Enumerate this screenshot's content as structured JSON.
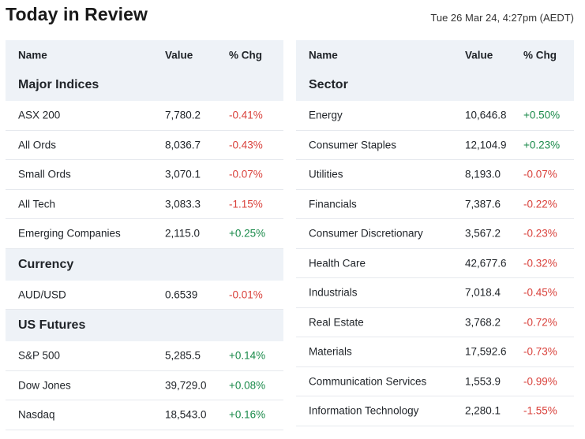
{
  "page": {
    "title": "Today in Review",
    "timestamp": "Tue 26 Mar 24, 4:27pm (AEDT)"
  },
  "colors": {
    "up": "#1a8a4a",
    "down": "#d9413b",
    "header_bg": "#eef2f7"
  },
  "left": {
    "columns": [
      "Name",
      "Value",
      "% Chg"
    ],
    "sections": [
      {
        "title": "Major Indices",
        "rows": [
          {
            "name": "ASX 200",
            "value": "7,780.2",
            "chg": "-0.41%",
            "dir": "down"
          },
          {
            "name": "All Ords",
            "value": "8,036.7",
            "chg": "-0.43%",
            "dir": "down"
          },
          {
            "name": "Small Ords",
            "value": "3,070.1",
            "chg": "-0.07%",
            "dir": "down"
          },
          {
            "name": "All Tech",
            "value": "3,083.3",
            "chg": "-1.15%",
            "dir": "down"
          },
          {
            "name": "Emerging Companies",
            "value": "2,115.0",
            "chg": "+0.25%",
            "dir": "up"
          }
        ]
      },
      {
        "title": "Currency",
        "rows": [
          {
            "name": "AUD/USD",
            "value": "0.6539",
            "chg": "-0.01%",
            "dir": "down"
          }
        ]
      },
      {
        "title": "US Futures",
        "rows": [
          {
            "name": "S&P 500",
            "value": "5,285.5",
            "chg": "+0.14%",
            "dir": "up"
          },
          {
            "name": "Dow Jones",
            "value": "39,729.0",
            "chg": "+0.08%",
            "dir": "up"
          },
          {
            "name": "Nasdaq",
            "value": "18,543.0",
            "chg": "+0.16%",
            "dir": "up"
          }
        ]
      }
    ]
  },
  "right": {
    "columns": [
      "Name",
      "Value",
      "% Chg"
    ],
    "sections": [
      {
        "title": "Sector",
        "rows": [
          {
            "name": "Energy",
            "value": "10,646.8",
            "chg": "+0.50%",
            "dir": "up"
          },
          {
            "name": "Consumer Staples",
            "value": "12,104.9",
            "chg": "+0.23%",
            "dir": "up"
          },
          {
            "name": "Utilities",
            "value": "8,193.0",
            "chg": "-0.07%",
            "dir": "down"
          },
          {
            "name": "Financials",
            "value": "7,387.6",
            "chg": "-0.22%",
            "dir": "down"
          },
          {
            "name": "Consumer Discretionary",
            "value": "3,567.2",
            "chg": "-0.23%",
            "dir": "down"
          },
          {
            "name": "Health Care",
            "value": "42,677.6",
            "chg": "-0.32%",
            "dir": "down"
          },
          {
            "name": "Industrials",
            "value": "7,018.4",
            "chg": "-0.45%",
            "dir": "down"
          },
          {
            "name": "Real Estate",
            "value": "3,768.2",
            "chg": "-0.72%",
            "dir": "down"
          },
          {
            "name": "Materials",
            "value": "17,592.6",
            "chg": "-0.73%",
            "dir": "down"
          },
          {
            "name": "Communication Services",
            "value": "1,553.9",
            "chg": "-0.99%",
            "dir": "down"
          },
          {
            "name": "Information Technology",
            "value": "2,280.1",
            "chg": "-1.55%",
            "dir": "down"
          }
        ]
      }
    ]
  }
}
